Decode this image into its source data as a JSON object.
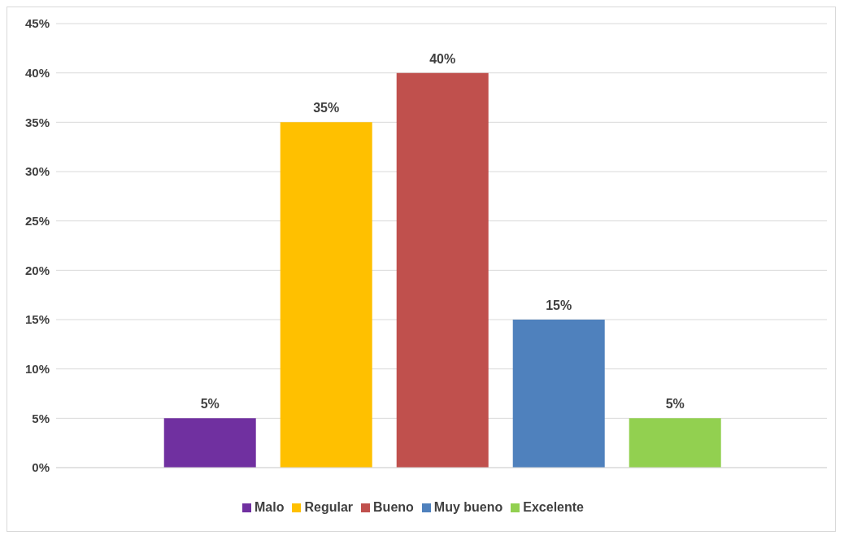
{
  "chart_data": {
    "type": "bar",
    "categories": [
      null
    ],
    "series": [
      {
        "name": "Malo",
        "color": "#7030a0",
        "values": [
          5
        ],
        "value_labels": [
          "5%"
        ]
      },
      {
        "name": "Regular",
        "color": "#ffc000",
        "values": [
          35
        ],
        "value_labels": [
          "35%"
        ]
      },
      {
        "name": "Bueno",
        "color": "#c0504d",
        "values": [
          40
        ],
        "value_labels": [
          "40%"
        ]
      },
      {
        "name": "Muy bueno",
        "color": "#4f81bd",
        "values": [
          15
        ],
        "value_labels": [
          "15%"
        ]
      },
      {
        "name": "Excelente",
        "color": "#92d050",
        "values": [
          5
        ],
        "value_labels": [
          "5%"
        ]
      }
    ],
    "ylim": [
      0,
      45
    ],
    "yticks": [
      {
        "value": 0,
        "label": "0%"
      },
      {
        "value": 5,
        "label": "5%"
      },
      {
        "value": 10,
        "label": "10%"
      },
      {
        "value": 15,
        "label": "15%"
      },
      {
        "value": 20,
        "label": "20%"
      },
      {
        "value": 25,
        "label": "25%"
      },
      {
        "value": 30,
        "label": "30%"
      },
      {
        "value": 35,
        "label": "35%"
      },
      {
        "value": 40,
        "label": "40%"
      },
      {
        "value": 45,
        "label": "45%"
      }
    ],
    "grid": "y",
    "legend": "bottom"
  }
}
